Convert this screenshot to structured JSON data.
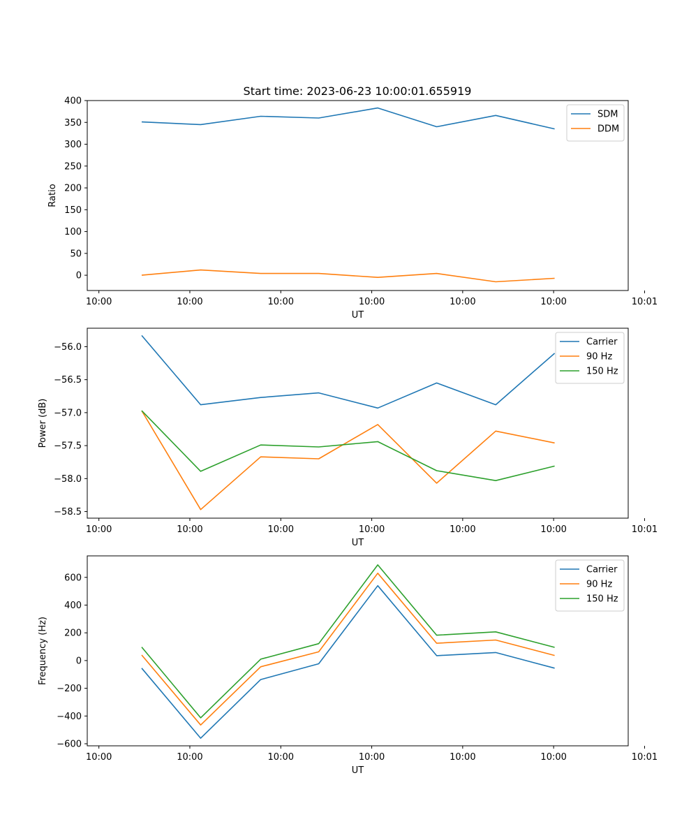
{
  "title": "Start time: 2023-06-23 10:00:01.655919",
  "x_tick_labels": [
    "10:00",
    "10:00",
    "10:00",
    "10:00",
    "10:00",
    "10:00",
    "10:01"
  ],
  "chart_data": [
    {
      "type": "line",
      "xlabel": "UT",
      "ylabel": "Ratio",
      "ylim": [
        -35,
        400
      ],
      "yticks": [
        0,
        50,
        100,
        150,
        200,
        250,
        300,
        350,
        400
      ],
      "xlim": [
        -0.128,
        5.82
      ],
      "x": [
        0.471,
        1.119,
        1.779,
        2.417,
        3.066,
        3.714,
        4.363,
        5.011
      ],
      "legend": "top-right",
      "series": [
        {
          "name": "SDM",
          "color": "#1f77b4",
          "values": [
            351,
            345,
            364,
            360,
            383,
            340,
            366,
            335
          ]
        },
        {
          "name": "DDM",
          "color": "#ff7f0e",
          "values": [
            0,
            12,
            4,
            4,
            -5,
            4,
            -15,
            -7
          ]
        }
      ]
    },
    {
      "type": "line",
      "xlabel": "UT",
      "ylabel": "Power (dB)",
      "ylim": [
        -58.6,
        -55.72
      ],
      "yticks": [
        -58.5,
        -58.0,
        -57.5,
        -57.0,
        -56.5,
        -56.0
      ],
      "ytick_labels": [
        "−58.5",
        "−58.0",
        "−57.5",
        "−57.0",
        "−56.5",
        "−56.0"
      ],
      "xlim": [
        -0.128,
        5.82
      ],
      "x": [
        0.471,
        1.119,
        1.779,
        2.417,
        3.066,
        3.714,
        4.363,
        5.011
      ],
      "legend": "top-right",
      "series": [
        {
          "name": "Carrier",
          "color": "#1f77b4",
          "values": [
            -55.83,
            -56.88,
            -56.77,
            -56.7,
            -56.93,
            -56.55,
            -56.88,
            -56.1
          ]
        },
        {
          "name": "90 Hz",
          "color": "#ff7f0e",
          "values": [
            -56.97,
            -58.47,
            -57.67,
            -57.7,
            -57.18,
            -58.07,
            -57.28,
            -57.46
          ]
        },
        {
          "name": "150 Hz",
          "color": "#2ca02c",
          "values": [
            -56.97,
            -57.89,
            -57.49,
            -57.52,
            -57.44,
            -57.88,
            -58.03,
            -57.81
          ]
        }
      ]
    },
    {
      "type": "line",
      "xlabel": "UT",
      "ylabel": "Frequency (Hz)",
      "ylim": [
        -615,
        755
      ],
      "yticks": [
        -600,
        -400,
        -200,
        0,
        200,
        400,
        600
      ],
      "ytick_labels": [
        "−600",
        "−400",
        "−200",
        "0",
        "200",
        "400",
        "600"
      ],
      "xlim": [
        -0.128,
        5.82
      ],
      "x": [
        0.471,
        1.119,
        1.779,
        2.417,
        3.066,
        3.714,
        4.363,
        5.011
      ],
      "legend": "top-right",
      "series": [
        {
          "name": "Carrier",
          "color": "#1f77b4",
          "values": [
            -55,
            -560,
            -137,
            -23,
            540,
            35,
            58,
            -55
          ]
        },
        {
          "name": "90 Hz",
          "color": "#ff7f0e",
          "values": [
            40,
            -465,
            -45,
            63,
            630,
            125,
            148,
            37
          ]
        },
        {
          "name": "150 Hz",
          "color": "#2ca02c",
          "values": [
            97,
            -413,
            10,
            122,
            690,
            183,
            207,
            95
          ]
        }
      ]
    }
  ]
}
